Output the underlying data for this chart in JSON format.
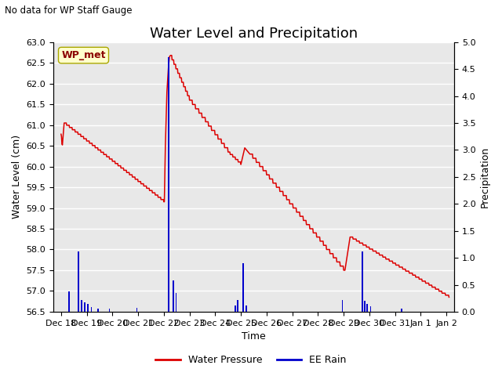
{
  "title": "Water Level and Precipitation",
  "subtitle": "No data for WP Staff Gauge",
  "xlabel": "Time",
  "ylabel_left": "Water Level (cm)",
  "ylabel_right": "Precipitation",
  "legend_label_box": "WP_met",
  "legend_entries": [
    "Water Pressure",
    "EE Rain"
  ],
  "legend_colors": [
    "#dd0000",
    "#0000cc"
  ],
  "ylim_left": [
    56.5,
    63.0
  ],
  "ylim_right": [
    0.0,
    5.0
  ],
  "yticks_left": [
    56.5,
    57.0,
    57.5,
    58.0,
    58.5,
    59.0,
    59.5,
    60.0,
    60.5,
    61.0,
    61.5,
    62.0,
    62.5,
    63.0
  ],
  "yticks_right": [
    0.0,
    0.5,
    1.0,
    1.5,
    2.0,
    2.5,
    3.0,
    3.5,
    4.0,
    4.5,
    5.0
  ],
  "xlim_days": [
    -0.3,
    15.3
  ],
  "bg_color": "#e8e8e8",
  "grid_color": "#ffffff",
  "title_fontsize": 13,
  "label_fontsize": 9,
  "tick_fontsize": 8,
  "xtick_labels": [
    "Dec 18",
    "Dec 19",
    "Dec 20",
    "Dec 21",
    "Dec 22",
    "Dec 23",
    "Dec 24",
    "Dec 25",
    "Dec 26",
    "Dec 27",
    "Dec 28",
    "Dec 29",
    "Dec 30",
    "Dec 31",
    "Jan 1",
    "Jan 2"
  ],
  "xtick_positions": [
    0,
    1,
    2,
    3,
    4,
    5,
    6,
    7,
    8,
    9,
    10,
    11,
    12,
    13,
    14,
    15
  ],
  "rain_events": [
    [
      0.32,
      0.38
    ],
    [
      0.68,
      1.12
    ],
    [
      0.8,
      0.22
    ],
    [
      0.92,
      0.18
    ],
    [
      1.05,
      0.14
    ],
    [
      1.18,
      0.08
    ],
    [
      1.45,
      0.06
    ],
    [
      1.88,
      0.06
    ],
    [
      2.95,
      0.07
    ],
    [
      4.18,
      4.72
    ],
    [
      4.38,
      0.58
    ],
    [
      4.48,
      0.35
    ],
    [
      6.78,
      0.12
    ],
    [
      6.88,
      0.22
    ],
    [
      7.08,
      0.9
    ],
    [
      7.22,
      0.12
    ],
    [
      10.95,
      0.22
    ],
    [
      11.72,
      1.12
    ],
    [
      11.82,
      0.2
    ],
    [
      11.9,
      0.14
    ],
    [
      12.05,
      0.1
    ],
    [
      13.25,
      0.06
    ]
  ]
}
